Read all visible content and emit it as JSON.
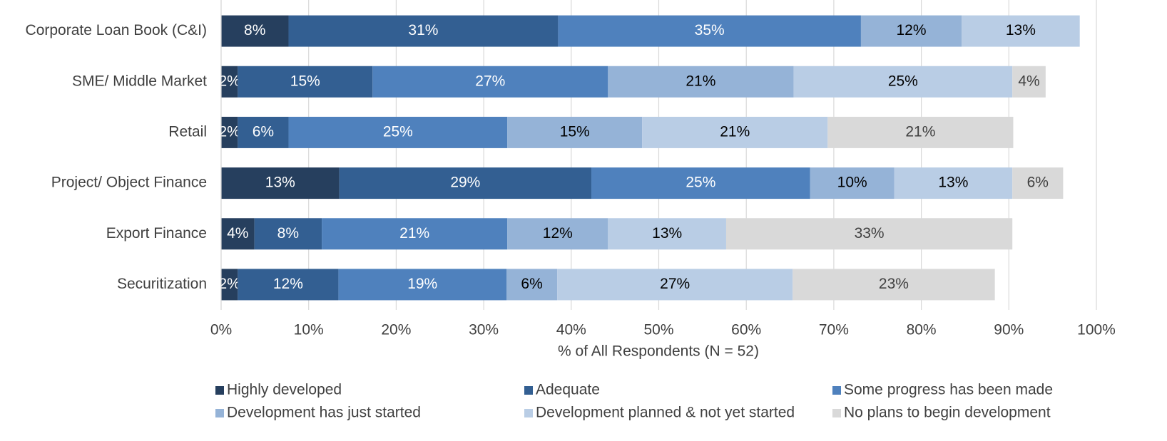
{
  "chart_data": {
    "type": "stacked-bar-horizontal",
    "categories": [
      "Corporate Loan Book (C&I)",
      "SME/ Middle Market",
      "Retail",
      "Project/ Object Finance",
      "Export Finance",
      "Securitization"
    ],
    "series": [
      {
        "name": "Highly developed",
        "color": "#263f5e",
        "label_color": "#ffffff",
        "values": [
          7.7,
          1.9,
          1.9,
          13.5,
          3.8,
          1.9
        ],
        "value_labels": [
          "8%",
          "2%",
          "2%",
          "13%",
          "4%",
          "2%"
        ]
      },
      {
        "name": "Adequate",
        "color": "#335f92",
        "label_color": "#ffffff",
        "values": [
          30.8,
          15.4,
          5.8,
          28.8,
          7.7,
          11.5
        ],
        "value_labels": [
          "31%",
          "15%",
          "6%",
          "29%",
          "8%",
          "12%"
        ]
      },
      {
        "name": "Some progress has been made",
        "color": "#4f81bd",
        "label_color": "#ffffff",
        "values": [
          34.6,
          26.9,
          25.0,
          25.0,
          21.2,
          19.2
        ],
        "value_labels": [
          "35%",
          "27%",
          "25%",
          "25%",
          "21%",
          "19%"
        ]
      },
      {
        "name": "Development has just started",
        "color": "#95b3d7",
        "label_color": "#000000",
        "values": [
          11.5,
          21.2,
          15.4,
          9.6,
          11.5,
          5.8
        ],
        "value_labels": [
          "12%",
          "21%",
          "15%",
          "10%",
          "12%",
          "6%"
        ]
      },
      {
        "name": "Development planned & not yet started",
        "color": "#b9cde5",
        "label_color": "#000000",
        "values": [
          13.5,
          25.0,
          21.2,
          13.5,
          13.5,
          26.9
        ],
        "value_labels": [
          "13%",
          "25%",
          "21%",
          "13%",
          "13%",
          "27%"
        ]
      },
      {
        "name": "No plans to begin development",
        "color": "#d9d9d9",
        "label_color": "#404040",
        "values": [
          null,
          3.8,
          21.2,
          5.8,
          32.7,
          23.1
        ],
        "value_labels": [
          null,
          "4%",
          "21%",
          "6%",
          "33%",
          "23%"
        ]
      }
    ],
    "x_label": "% of All Respondents (N = 52)",
    "xlim": [
      0,
      100
    ],
    "xticks": [
      {
        "value": 0,
        "label": "0%"
      },
      {
        "value": 10,
        "label": "10%"
      },
      {
        "value": 20,
        "label": "20%"
      },
      {
        "value": 30,
        "label": "30%"
      },
      {
        "value": 40,
        "label": "40%"
      },
      {
        "value": 50,
        "label": "50%"
      },
      {
        "value": 60,
        "label": "60%"
      },
      {
        "value": 70,
        "label": "70%"
      },
      {
        "value": 80,
        "label": "80%"
      },
      {
        "value": 90,
        "label": "90%"
      },
      {
        "value": 100,
        "label": "100%"
      }
    ],
    "grid": true,
    "legend": "bottom"
  }
}
